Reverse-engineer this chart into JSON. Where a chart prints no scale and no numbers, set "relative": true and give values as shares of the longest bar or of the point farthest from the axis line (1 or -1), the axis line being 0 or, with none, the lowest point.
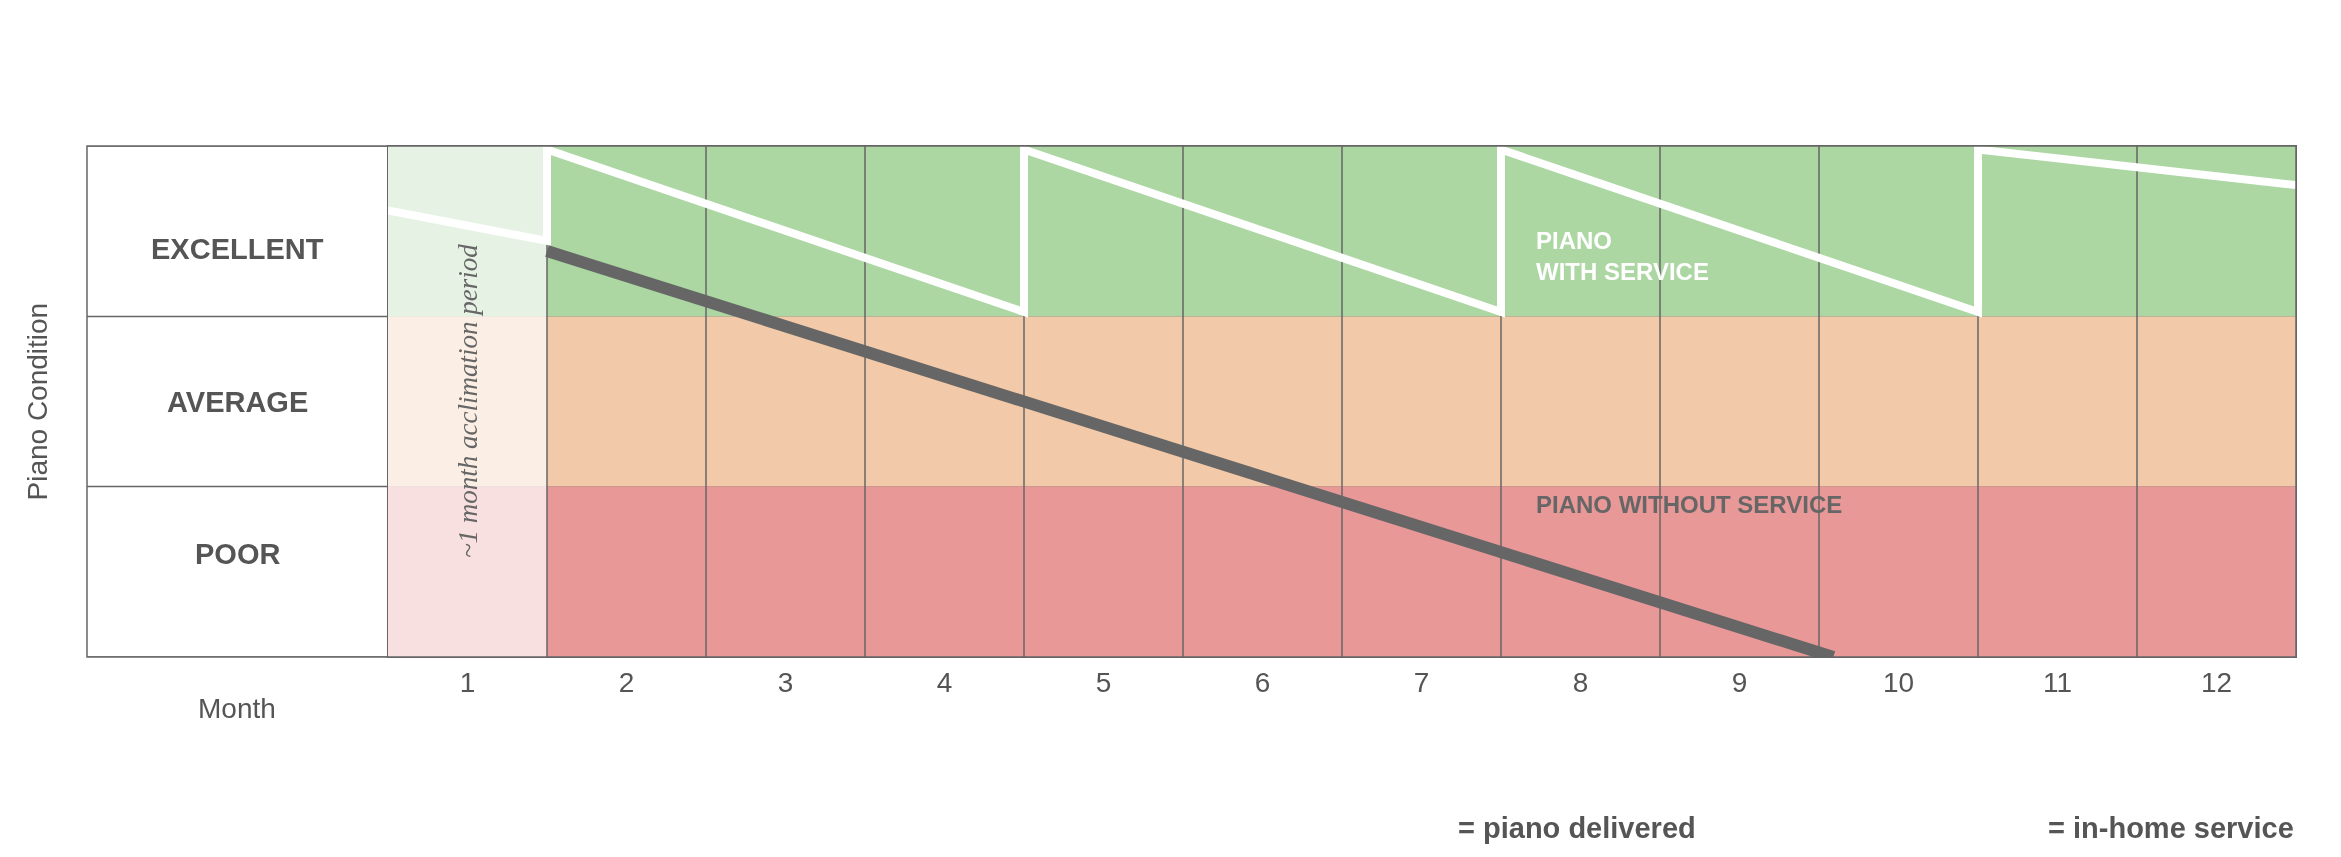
{
  "chart_data": {
    "type": "line",
    "xlabel": "Month",
    "relative": true,
    "xlim": [
      0.5,
      12.5
    ],
    "xticks": [
      1,
      2,
      3,
      4,
      5,
      6,
      7,
      8,
      9,
      10,
      11,
      12,
      {
        "value": 1.5,
        "label": null
      },
      {
        "value": 2.5,
        "label": null
      },
      {
        "value": 3.5,
        "label": null
      },
      {
        "value": 4.5,
        "label": null
      },
      {
        "value": 5.5,
        "label": null
      },
      {
        "value": 6.5,
        "label": null
      },
      {
        "value": 7.5,
        "label": null
      },
      {
        "value": 8.5,
        "label": null
      },
      {
        "value": 9.5,
        "label": null
      },
      {
        "value": 10.5,
        "label": null
      },
      {
        "value": 11.5,
        "label": null
      }
    ],
    "grid": true,
    "legend": false,
    "marker": "none",
    "line_style": "solid",
    "bands": [
      {
        "axis": "y",
        "from": 0.671,
        "to": 1.007,
        "color": "#acd7a3",
        "label": null
      },
      {
        "axis": "y",
        "from": 0.336,
        "to": 0.671,
        "color": "#f2caa9",
        "label": null
      },
      {
        "axis": "y",
        "from": 0,
        "to": 0.336,
        "color": "#e99898",
        "label": null
      },
      {
        "axis": "x",
        "from": 0.5,
        "to": 1.5,
        "color": "#ffffff",
        "label": "~1 month acclimation period"
      }
    ],
    "series": [
      {
        "name": "PIANO\nWITH SERVICE",
        "color": "#ffffff",
        "x": [
          0.5,
          1.5,
          1.5,
          4.5,
          4.5,
          7.5,
          7.5,
          10.5,
          10.5,
          12.5
        ],
        "values": [
          0.88,
          0.82,
          1,
          0.68,
          1,
          0.68,
          1,
          0.68,
          1,
          0.93
        ]
      },
      {
        "name": "PIANO WITHOUT SERVICE",
        "color": "#666666",
        "x": [
          1.5,
          9.59
        ],
        "values": [
          0.8,
          0
        ]
      }
    ],
    "annotations": [
      "Piano Condition",
      "EXCELLENT",
      "AVERAGE",
      "POOR",
      "= piano delivered",
      "= in-home service"
    ]
  }
}
